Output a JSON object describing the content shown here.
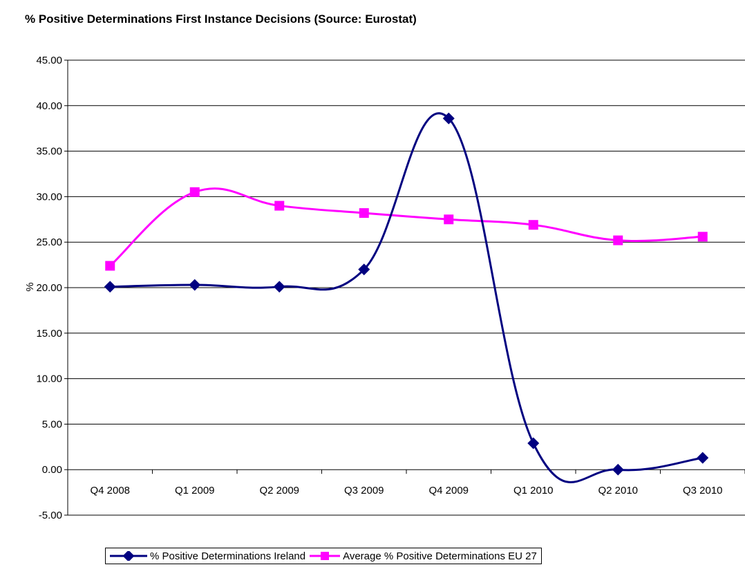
{
  "chart_data": {
    "type": "line",
    "title": "% Positive Determinations First Instance Decisions (Source: Eurostat)",
    "xlabel": "",
    "ylabel": "%",
    "ylim": [
      -5,
      45
    ],
    "yticks": [
      "-5.00",
      "0.00",
      "5.00",
      "10.00",
      "15.00",
      "20.00",
      "25.00",
      "30.00",
      "35.00",
      "40.00",
      "45.00"
    ],
    "categories": [
      "Q4 2008",
      "Q1 2009",
      "Q2 2009",
      "Q3 2009",
      "Q4 2009",
      "Q1 2010",
      "Q2 2010",
      "Q3 2010"
    ],
    "grid": "horizontal",
    "legend_position": "bottom",
    "series": [
      {
        "name": "% Positive Determinations Ireland",
        "color": "#000080",
        "marker": "diamond",
        "values": [
          20.1,
          20.3,
          20.1,
          22.0,
          38.6,
          2.9,
          0.0,
          1.3
        ]
      },
      {
        "name": "Average % Positive Determinations EU 27",
        "color": "#FF00FF",
        "marker": "square",
        "values": [
          22.4,
          30.5,
          29.0,
          28.2,
          27.5,
          26.9,
          25.2,
          25.6
        ]
      }
    ]
  }
}
